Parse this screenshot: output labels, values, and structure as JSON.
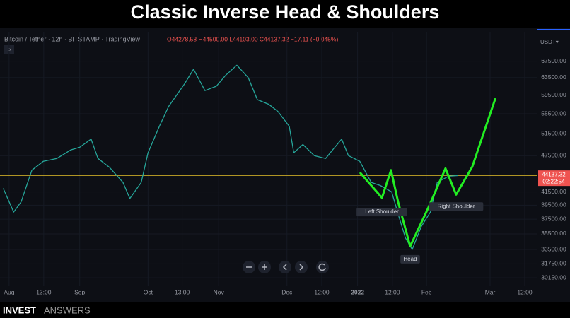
{
  "chart_data": {
    "type": "line",
    "title": "Classic Inverse Head & Shoulders",
    "symbol": "Bitcoin / Tether · 12h · BITSTAMP · TradingView",
    "ohlc": "O44278.58 H44500.00 L44103.00 C44137.32 −17.11 (−0.045%)",
    "interval_badge": "5",
    "currency": "USDT▾",
    "log_scale": true,
    "xlim": [
      -4,
      232
    ],
    "ylim": [
      29220,
      75300
    ],
    "xticks": [
      {
        "value": 0,
        "label": "Aug"
      },
      {
        "value": 15.2,
        "label": "13:00"
      },
      {
        "value": 31,
        "label": "Sep"
      },
      {
        "value": 61,
        "label": "Oct"
      },
      {
        "value": 76,
        "label": "13:00"
      },
      {
        "value": 92,
        "label": "Nov"
      },
      {
        "value": 122,
        "label": "Dec"
      },
      {
        "value": 137.3,
        "label": "12:00"
      },
      {
        "value": 153,
        "label": "2022"
      },
      {
        "value": 168.3,
        "label": "12:00"
      },
      {
        "value": 183.3,
        "label": "Feb"
      },
      {
        "value": 211.2,
        "label": "Mar"
      },
      {
        "value": 226.4,
        "label": "12:00"
      }
    ],
    "yticks": [
      {
        "value": 67500,
        "label": "67500.00"
      },
      {
        "value": 63500,
        "label": "63500.00"
      },
      {
        "value": 59500,
        "label": "59500.00"
      },
      {
        "value": 55500,
        "label": "55500.00"
      },
      {
        "value": 51500,
        "label": "51500.00"
      },
      {
        "value": 47500,
        "label": "47500.00"
      },
      {
        "value": 41500,
        "label": "41500.00"
      },
      {
        "value": 39500,
        "label": "39500.00"
      },
      {
        "value": 37500,
        "label": "37500.00"
      },
      {
        "value": 35500,
        "label": "35500.00"
      },
      {
        "value": 33500,
        "label": "33500.00"
      },
      {
        "value": 31750,
        "label": "31750.00"
      },
      {
        "value": 30150,
        "label": "30150.00"
      }
    ],
    "series": [
      {
        "color": "#26a69a",
        "x": [
          -2.5,
          2,
          5.3,
          10,
          15,
          21,
          27,
          31,
          36,
          39,
          44,
          50,
          53,
          58,
          61,
          66,
          70,
          77,
          81,
          86,
          91,
          95,
          100,
          105,
          109,
          114,
          118,
          123,
          125,
          129,
          134,
          139,
          143,
          146,
          149,
          154,
          159,
          163,
          168,
          171,
          174,
          177,
          181,
          185,
          188,
          193,
          197
        ],
        "values": [
          42000,
          38500,
          40000,
          45000,
          46500,
          47000,
          48500,
          49000,
          50500,
          47000,
          45500,
          43000,
          40500,
          43000,
          48000,
          53000,
          57000,
          62000,
          65500,
          60500,
          61500,
          64000,
          66500,
          63500,
          58500,
          57500,
          56000,
          53000,
          48000,
          49500,
          47500,
          47000,
          49000,
          50500,
          47500,
          46500,
          43000,
          42500,
          41500,
          38000,
          35000,
          33500,
          36500,
          38500,
          43000,
          44000,
          44100
        ]
      },
      {
        "color": "#22ee22",
        "x": [
          154.3,
          163.7,
          167.7,
          170.8,
          176.1,
          183.9,
          191.6,
          196.3,
          203.4,
          213.4
        ],
        "values": [
          44500,
          40600,
          45000,
          40000,
          33900,
          39000,
          45300,
          41100,
          45600,
          58600
        ]
      }
    ],
    "last_price": {
      "value": 44137.32,
      "label": "44137.32"
    },
    "countdown": "02:22:54",
    "line_color": "#e6c229",
    "annotations": [
      {
        "text": "Left Shoulder",
        "x": 163.7,
        "y": 38500
      },
      {
        "text": "Head",
        "x": 176.1,
        "y": 32300
      },
      {
        "text": "Right Shoulder",
        "x": 196.3,
        "y": 39300
      }
    ],
    "brand": [
      "INVEST",
      "ANSWERS"
    ]
  }
}
